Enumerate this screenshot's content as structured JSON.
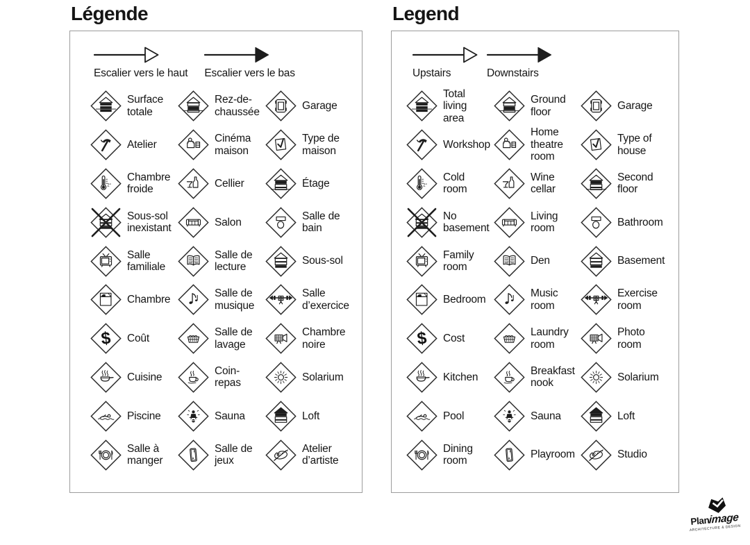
{
  "panels": [
    {
      "id": "french",
      "title": "Légende",
      "arrows": [
        {
          "label": "Escalier vers le haut",
          "icon": "stair-up-arrow"
        },
        {
          "label": "Escalier vers le bas",
          "icon": "stair-down-arrow"
        }
      ],
      "items": [
        {
          "label": "Surface totale",
          "icon": "total-area"
        },
        {
          "label": "Rez-de-chaussée",
          "icon": "ground-floor"
        },
        {
          "label": "Garage",
          "icon": "garage"
        },
        {
          "label": "Atelier",
          "icon": "workshop"
        },
        {
          "label": "Cinéma maison",
          "icon": "home-theatre"
        },
        {
          "label": "Type de maison",
          "icon": "house-type"
        },
        {
          "label": "Chambre froide",
          "icon": "cold-room"
        },
        {
          "label": "Cellier",
          "icon": "wine-cellar"
        },
        {
          "label": "Étage",
          "icon": "second-floor"
        },
        {
          "label": "Sous-sol inexistant",
          "icon": "no-basement"
        },
        {
          "label": "Salon",
          "icon": "living-room"
        },
        {
          "label": "Salle de bain",
          "icon": "bathroom"
        },
        {
          "label": "Salle familiale",
          "icon": "family-room"
        },
        {
          "label": "Salle de lecture",
          "icon": "den"
        },
        {
          "label": "Sous-sol",
          "icon": "basement"
        },
        {
          "label": "Chambre",
          "icon": "bedroom"
        },
        {
          "label": "Salle de musique",
          "icon": "music-room"
        },
        {
          "label": "Salle d’exercice",
          "icon": "exercise-room"
        },
        {
          "label": "Coût",
          "icon": "cost"
        },
        {
          "label": "Salle de lavage",
          "icon": "laundry-room"
        },
        {
          "label": "Chambre noire",
          "icon": "photo-room"
        },
        {
          "label": "Cuisine",
          "icon": "kitchen"
        },
        {
          "label": "Coin-repas",
          "icon": "breakfast-nook"
        },
        {
          "label": "Solarium",
          "icon": "solarium"
        },
        {
          "label": "Piscine",
          "icon": "pool"
        },
        {
          "label": "Sauna",
          "icon": "sauna"
        },
        {
          "label": "Loft",
          "icon": "loft"
        },
        {
          "label": "Salle à manger",
          "icon": "dining-room"
        },
        {
          "label": "Salle de jeux",
          "icon": "playroom"
        },
        {
          "label": "Atelier d’artiste",
          "icon": "studio"
        }
      ]
    },
    {
      "id": "english",
      "title": "Legend",
      "arrows": [
        {
          "label": "Upstairs",
          "icon": "stair-up-arrow"
        },
        {
          "label": "Downstairs",
          "icon": "stair-down-arrow"
        }
      ],
      "items": [
        {
          "label": "Total living area",
          "icon": "total-area"
        },
        {
          "label": "Ground floor",
          "icon": "ground-floor"
        },
        {
          "label": "Garage",
          "icon": "garage"
        },
        {
          "label": "Workshop",
          "icon": "workshop"
        },
        {
          "label": "Home theatre room",
          "icon": "home-theatre"
        },
        {
          "label": "Type of house",
          "icon": "house-type"
        },
        {
          "label": "Cold room",
          "icon": "cold-room"
        },
        {
          "label": "Wine cellar",
          "icon": "wine-cellar"
        },
        {
          "label": "Second floor",
          "icon": "second-floor"
        },
        {
          "label": "No basement",
          "icon": "no-basement"
        },
        {
          "label": "Living room",
          "icon": "living-room"
        },
        {
          "label": "Bathroom",
          "icon": "bathroom"
        },
        {
          "label": "Family room",
          "icon": "family-room"
        },
        {
          "label": "Den",
          "icon": "den"
        },
        {
          "label": "Basement",
          "icon": "basement"
        },
        {
          "label": "Bedroom",
          "icon": "bedroom"
        },
        {
          "label": "Music room",
          "icon": "music-room"
        },
        {
          "label": "Exercise room",
          "icon": "exercise-room"
        },
        {
          "label": "Cost",
          "icon": "cost"
        },
        {
          "label": "Laundry room",
          "icon": "laundry-room"
        },
        {
          "label": "Photo room",
          "icon": "photo-room"
        },
        {
          "label": "Kitchen",
          "icon": "kitchen"
        },
        {
          "label": "Breakfast nook",
          "icon": "breakfast-nook"
        },
        {
          "label": "Solarium",
          "icon": "solarium"
        },
        {
          "label": "Pool",
          "icon": "pool"
        },
        {
          "label": "Sauna",
          "icon": "sauna"
        },
        {
          "label": "Loft",
          "icon": "loft"
        },
        {
          "label": "Dining room",
          "icon": "dining-room"
        },
        {
          "label": "Playroom",
          "icon": "playroom"
        },
        {
          "label": "Studio",
          "icon": "studio"
        }
      ]
    }
  ],
  "logo": {
    "brand_bold": "Plan",
    "brand_script": "image",
    "tagline": "ARCHITECTURE & DESIGN"
  }
}
